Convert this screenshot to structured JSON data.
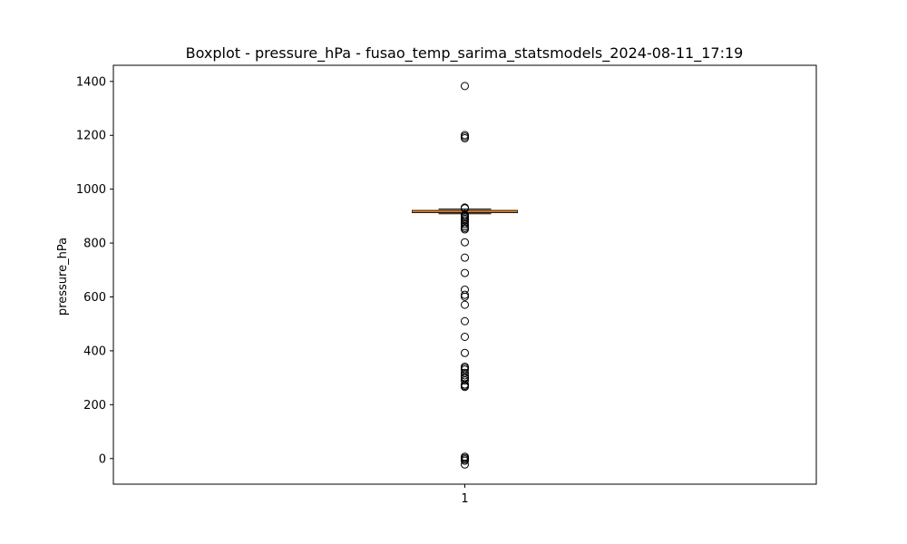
{
  "chart_data": {
    "type": "boxplot",
    "title": "Boxplot - pressure_hPa - fusao_temp_sarima_statsmodels_2024-08-11_17:19",
    "xlabel": "",
    "ylabel": "pressure_hPa",
    "categories": [
      "1"
    ],
    "ylim": [
      -95,
      1460
    ],
    "yticks": [
      0,
      200,
      400,
      600,
      800,
      1000,
      1200,
      1400
    ],
    "grid": false,
    "box": {
      "category": "1",
      "whisker_low": 909,
      "q1": 913,
      "median": 917,
      "q3": 921,
      "whisker_high": 926,
      "outliers": [
        1383,
        1201,
        1195,
        1189,
        932,
        929,
        905,
        900,
        895,
        890,
        885,
        878,
        870,
        862,
        856,
        851,
        803,
        746,
        689,
        627,
        608,
        601,
        571,
        510,
        452,
        392,
        341,
        336,
        330,
        318,
        309,
        302,
        298,
        290,
        275,
        270,
        266,
        7,
        2,
        -3,
        -8,
        -22
      ]
    },
    "colors": {
      "median": "#ff7f0e",
      "box": "#000000",
      "outlier": "#000000",
      "frame": "#000000"
    }
  }
}
